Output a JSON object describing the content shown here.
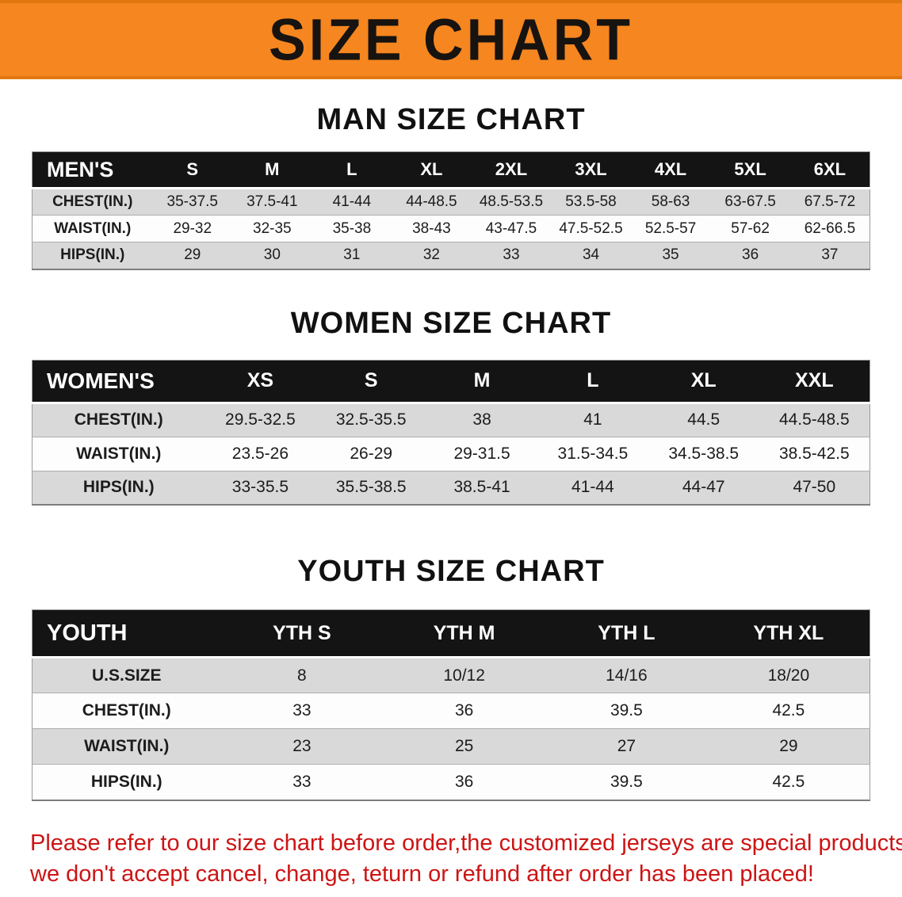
{
  "banner": {
    "title": "SIZE CHART"
  },
  "colors": {
    "banner_orange": "#f6861f",
    "header_black": "#141414",
    "row_gray": "#d9d9d9",
    "notice_red": "#cd1414"
  },
  "sections": [
    {
      "id": "men",
      "heading": "MAN SIZE CHART",
      "table": {
        "header": [
          "MEN'S",
          "S",
          "M",
          "L",
          "XL",
          "2XL",
          "3XL",
          "4XL",
          "5XL",
          "6XL"
        ],
        "rows": [
          [
            "CHEST(IN.)",
            "35-37.5",
            "37.5-41",
            "41-44",
            "44-48.5",
            "48.5-53.5",
            "53.5-58",
            "58-63",
            "63-67.5",
            "67.5-72"
          ],
          [
            "WAIST(IN.)",
            "29-32",
            "32-35",
            "35-38",
            "38-43",
            "43-47.5",
            "47.5-52.5",
            "52.5-57",
            "57-62",
            "62-66.5"
          ],
          [
            "HIPS(IN.)",
            "29",
            "30",
            "31",
            "32",
            "33",
            "34",
            "35",
            "36",
            "37"
          ]
        ]
      }
    },
    {
      "id": "women",
      "heading": "WOMEN SIZE CHART",
      "table": {
        "header": [
          "WOMEN'S",
          "XS",
          "S",
          "M",
          "L",
          "XL",
          "XXL"
        ],
        "rows": [
          [
            "CHEST(IN.)",
            "29.5-32.5",
            "32.5-35.5",
            "38",
            "41",
            "44.5",
            "44.5-48.5"
          ],
          [
            "WAIST(IN.)",
            "23.5-26",
            "26-29",
            "29-31.5",
            "31.5-34.5",
            "34.5-38.5",
            "38.5-42.5"
          ],
          [
            "HIPS(IN.)",
            "33-35.5",
            "35.5-38.5",
            "38.5-41",
            "41-44",
            "44-47",
            "47-50"
          ]
        ]
      }
    },
    {
      "id": "youth",
      "heading": "YOUTH SIZE CHART",
      "table": {
        "header": [
          "YOUTH",
          "YTH S",
          "YTH M",
          "YTH L",
          "YTH XL"
        ],
        "rows": [
          [
            "U.S.SIZE",
            "8",
            "10/12",
            "14/16",
            "18/20"
          ],
          [
            "CHEST(IN.)",
            "33",
            "36",
            "39.5",
            "42.5"
          ],
          [
            "WAIST(IN.)",
            "23",
            "25",
            "27",
            "29"
          ],
          [
            "HIPS(IN.)",
            "33",
            "36",
            "39.5",
            "42.5"
          ]
        ]
      }
    }
  ],
  "footer": {
    "lines": [
      "Please refer to our size chart before order,the customized jerseys are special products,",
      "we don't accept cancel, change, teturn or refund after order has been placed!"
    ]
  }
}
